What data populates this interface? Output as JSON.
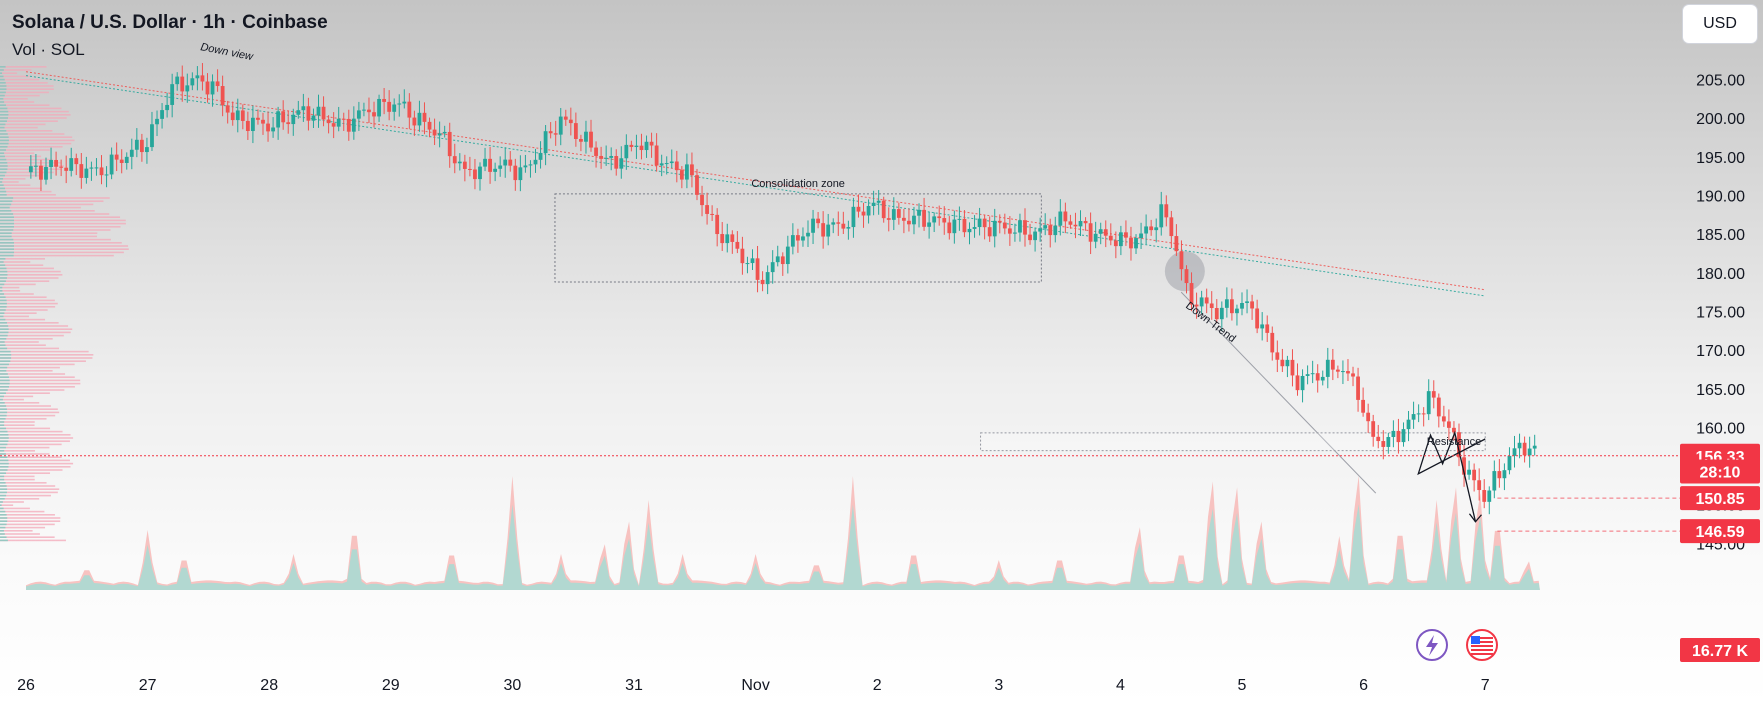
{
  "header": {
    "title": "Solana / U.S. Dollar · 1h · Coinbase",
    "volume_label": "Vol · SOL"
  },
  "currency_button": "USD",
  "colors": {
    "up": "#26a69a",
    "down": "#ef5350",
    "tag": "#f23645"
  },
  "chart_data": {
    "type": "candlestick",
    "y_ticks": [
      "145.00",
      "150.00",
      "155.00",
      "160.00",
      "165.00",
      "170.00",
      "175.00",
      "180.00",
      "185.00",
      "190.00",
      "195.00",
      "200.00",
      "205.00"
    ],
    "ylim": [
      143.5,
      207
    ],
    "x_ticks": [
      "26",
      "27",
      "28",
      "29",
      "30",
      "31",
      "Nov",
      "2",
      "3",
      "4",
      "5",
      "6",
      "7"
    ],
    "close_path": [
      {
        "t": 0.0,
        "p": 193
      },
      {
        "t": 0.3,
        "p": 194
      },
      {
        "t": 0.6,
        "p": 193
      },
      {
        "t": 1.0,
        "p": 197
      },
      {
        "t": 1.2,
        "p": 204
      },
      {
        "t": 1.4,
        "p": 205
      },
      {
        "t": 1.55,
        "p": 204
      },
      {
        "t": 1.7,
        "p": 200
      },
      {
        "t": 2.0,
        "p": 199
      },
      {
        "t": 2.3,
        "p": 201
      },
      {
        "t": 2.6,
        "p": 199
      },
      {
        "t": 2.8,
        "p": 201
      },
      {
        "t": 3.05,
        "p": 202
      },
      {
        "t": 3.2,
        "p": 200
      },
      {
        "t": 3.4,
        "p": 198
      },
      {
        "t": 3.6,
        "p": 193
      },
      {
        "t": 3.9,
        "p": 194
      },
      {
        "t": 4.1,
        "p": 193
      },
      {
        "t": 4.4,
        "p": 200
      },
      {
        "t": 4.6,
        "p": 197
      },
      {
        "t": 4.8,
        "p": 194
      },
      {
        "t": 5.05,
        "p": 197
      },
      {
        "t": 5.25,
        "p": 194
      },
      {
        "t": 5.45,
        "p": 193
      },
      {
        "t": 5.65,
        "p": 186
      },
      {
        "t": 5.85,
        "p": 183
      },
      {
        "t": 6.05,
        "p": 179
      },
      {
        "t": 6.25,
        "p": 183
      },
      {
        "t": 6.45,
        "p": 186
      },
      {
        "t": 6.7,
        "p": 186
      },
      {
        "t": 6.95,
        "p": 189
      },
      {
        "t": 7.15,
        "p": 187
      },
      {
        "t": 7.4,
        "p": 187
      },
      {
        "t": 7.7,
        "p": 186
      },
      {
        "t": 8.0,
        "p": 186
      },
      {
        "t": 8.3,
        "p": 185
      },
      {
        "t": 8.55,
        "p": 187
      },
      {
        "t": 8.8,
        "p": 185
      },
      {
        "t": 9.05,
        "p": 184
      },
      {
        "t": 9.2,
        "p": 185
      },
      {
        "t": 9.35,
        "p": 188
      },
      {
        "t": 9.45,
        "p": 184
      },
      {
        "t": 9.55,
        "p": 177
      },
      {
        "t": 9.8,
        "p": 175
      },
      {
        "t": 10.0,
        "p": 176
      },
      {
        "t": 10.1,
        "p": 175
      },
      {
        "t": 10.25,
        "p": 170
      },
      {
        "t": 10.45,
        "p": 166
      },
      {
        "t": 10.65,
        "p": 167
      },
      {
        "t": 10.8,
        "p": 168
      },
      {
        "t": 10.95,
        "p": 165
      },
      {
        "t": 11.05,
        "p": 159
      },
      {
        "t": 11.2,
        "p": 158
      },
      {
        "t": 11.4,
        "p": 161
      },
      {
        "t": 11.55,
        "p": 164
      },
      {
        "t": 11.7,
        "p": 160
      },
      {
        "t": 11.85,
        "p": 154
      },
      {
        "t": 12.0,
        "p": 151
      },
      {
        "t": 12.15,
        "p": 155
      },
      {
        "t": 12.3,
        "p": 158
      },
      {
        "t": 12.42,
        "p": 156.33
      }
    ],
    "price_tags": [
      {
        "label": "156.33",
        "price": 156.33
      },
      {
        "label": "28:10",
        "price": 154.3
      },
      {
        "label": "150.85",
        "price": 150.85
      },
      {
        "label": "146.59",
        "price": 146.59
      }
    ],
    "volume_tag": "16.77 K",
    "annotations": {
      "down_view": "Down view",
      "consolidation": "Consolidation zone",
      "down_trend": "Down Trend",
      "resistance": "Resistance"
    },
    "consolidation_box": {
      "t0": 4.35,
      "t1": 8.35,
      "p_high": 190.2,
      "p_low": 178.8
    },
    "resistance_zone": {
      "t0": 7.85,
      "t1": 12.0,
      "p_high": 159.3,
      "p_low": 157.0
    },
    "trendlines": [
      {
        "name": "down-view-line-red",
        "from": {
          "t": 0.0,
          "p": 206.0
        },
        "to": {
          "t": 12.0,
          "p": 177.8
        },
        "color": "#ef5350"
      },
      {
        "name": "down-view-line-green",
        "from": {
          "t": 0.0,
          "p": 205.5
        },
        "to": {
          "t": 12.0,
          "p": 177.0
        },
        "color": "#26a69a"
      },
      {
        "name": "down-trend-line",
        "from": {
          "t": 9.5,
          "p": 177.5
        },
        "to": {
          "t": 11.1,
          "p": 151.5
        },
        "color": "#9598a1"
      }
    ],
    "projection_path": [
      {
        "t": 12.0,
        "p": 158.5
      },
      {
        "t": 11.45,
        "p": 154.0
      },
      {
        "t": 11.55,
        "p": 159.0
      },
      {
        "t": 11.65,
        "p": 155.3
      },
      {
        "t": 11.75,
        "p": 159.3
      },
      {
        "t": 11.92,
        "p": 147.8
      }
    ],
    "volume_peaks": [
      {
        "t": 0.5,
        "v": 0.2
      },
      {
        "t": 1.0,
        "v": 0.5
      },
      {
        "t": 1.3,
        "v": 0.3
      },
      {
        "t": 2.2,
        "v": 0.3
      },
      {
        "t": 2.7,
        "v": 0.55
      },
      {
        "t": 3.5,
        "v": 0.35
      },
      {
        "t": 4.0,
        "v": 0.95
      },
      {
        "t": 4.4,
        "v": 0.3
      },
      {
        "t": 4.75,
        "v": 0.4
      },
      {
        "t": 4.95,
        "v": 0.6
      },
      {
        "t": 5.12,
        "v": 0.75
      },
      {
        "t": 5.4,
        "v": 0.3
      },
      {
        "t": 6.0,
        "v": 0.3
      },
      {
        "t": 6.5,
        "v": 0.25
      },
      {
        "t": 6.8,
        "v": 0.95
      },
      {
        "t": 7.3,
        "v": 0.35
      },
      {
        "t": 8.0,
        "v": 0.25
      },
      {
        "t": 8.5,
        "v": 0.3
      },
      {
        "t": 9.15,
        "v": 0.55
      },
      {
        "t": 9.5,
        "v": 0.35
      },
      {
        "t": 9.75,
        "v": 0.95
      },
      {
        "t": 9.95,
        "v": 0.9
      },
      {
        "t": 10.15,
        "v": 0.6
      },
      {
        "t": 10.8,
        "v": 0.45
      },
      {
        "t": 10.95,
        "v": 1.0
      },
      {
        "t": 11.3,
        "v": 0.55
      },
      {
        "t": 11.6,
        "v": 0.75
      },
      {
        "t": 11.75,
        "v": 0.9
      },
      {
        "t": 11.95,
        "v": 0.85
      },
      {
        "t": 12.1,
        "v": 0.6
      },
      {
        "t": 12.35,
        "v": 0.25
      }
    ]
  }
}
